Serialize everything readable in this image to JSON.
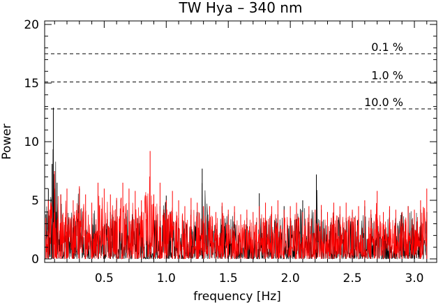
{
  "chart_data": {
    "type": "line",
    "title": "TW Hya – 340 nm",
    "xlabel": "frequency [Hz]",
    "ylabel": "Power",
    "xlim": [
      0.02,
      3.18
    ],
    "ylim": [
      -0.3,
      20.3
    ],
    "x_ticks": [
      0.5,
      1.0,
      1.5,
      2.0,
      2.5,
      3.0
    ],
    "x_tick_labels": [
      "0.5",
      "1.0",
      "1.5",
      "2.0",
      "2.5",
      "3.0"
    ],
    "y_ticks": [
      0,
      5,
      10,
      15,
      20
    ],
    "y_tick_labels": [
      "0",
      "5",
      "10",
      "15",
      "20"
    ],
    "grid": false,
    "significance_levels": [
      {
        "label": "0.1 %",
        "value": 17.5
      },
      {
        "label": "1.0 %",
        "value": 15.1
      },
      {
        "label": "10.0 %",
        "value": 12.8
      }
    ],
    "series": [
      {
        "color": "#000000",
        "x": [
          0.03,
          0.05,
          0.08,
          0.09,
          0.12,
          0.15,
          0.2,
          0.25,
          0.3,
          0.35,
          0.4,
          0.45,
          0.5,
          0.55,
          0.6,
          0.65,
          0.7,
          0.75,
          0.8,
          0.85,
          0.9,
          0.95,
          1.0,
          1.05,
          1.1,
          1.15,
          1.2,
          1.25,
          1.29,
          1.35,
          1.4,
          1.45,
          1.5,
          1.55,
          1.6,
          1.65,
          1.7,
          1.75,
          1.8,
          1.85,
          1.9,
          1.95,
          2.0,
          2.05,
          2.1,
          2.15,
          2.21,
          2.25,
          2.3,
          2.35,
          2.4,
          2.45,
          2.5,
          2.55,
          2.6,
          2.65,
          2.7,
          2.75,
          2.8,
          2.85,
          2.9,
          2.95,
          3.0,
          3.05,
          3.1
        ],
        "y": [
          3.8,
          6.0,
          8.1,
          12.9,
          6.5,
          5.5,
          4.5,
          3.8,
          6.0,
          4.0,
          3.5,
          5.5,
          3.0,
          4.0,
          5.0,
          3.5,
          4.8,
          3.2,
          4.0,
          3.0,
          3.8,
          4.5,
          5.4,
          4.0,
          3.0,
          3.5,
          4.2,
          4.0,
          7.7,
          3.2,
          3.0,
          4.5,
          3.8,
          4.0,
          3.2,
          3.5,
          2.8,
          5.6,
          3.5,
          4.0,
          3.8,
          4.5,
          3.5,
          4.0,
          5.0,
          3.8,
          7.2,
          4.2,
          3.5,
          4.0,
          3.8,
          3.5,
          4.0,
          3.6,
          4.5,
          3.8,
          3.5,
          3.0,
          4.2,
          3.5,
          4.0,
          4.5,
          3.8,
          4.2,
          4.0
        ]
      },
      {
        "color": "#ff0000",
        "x": [
          0.03,
          0.05,
          0.1,
          0.15,
          0.2,
          0.25,
          0.3,
          0.35,
          0.4,
          0.45,
          0.5,
          0.55,
          0.6,
          0.65,
          0.7,
          0.75,
          0.8,
          0.87,
          0.9,
          0.95,
          1.0,
          1.05,
          1.1,
          1.15,
          1.2,
          1.25,
          1.3,
          1.35,
          1.4,
          1.45,
          1.5,
          1.55,
          1.6,
          1.65,
          1.7,
          1.75,
          1.8,
          1.85,
          1.9,
          1.95,
          2.0,
          2.05,
          2.1,
          2.15,
          2.2,
          2.25,
          2.3,
          2.35,
          2.4,
          2.45,
          2.5,
          2.55,
          2.6,
          2.65,
          2.7,
          2.75,
          2.8,
          2.85,
          2.9,
          2.95,
          3.0,
          3.05,
          3.1
        ],
        "y": [
          3.5,
          5.0,
          7.5,
          5.5,
          6.0,
          5.0,
          6.2,
          5.5,
          4.8,
          6.5,
          6.0,
          5.5,
          5.2,
          6.5,
          6.0,
          5.8,
          5.0,
          9.2,
          5.5,
          6.5,
          5.0,
          5.8,
          5.0,
          4.5,
          5.2,
          4.8,
          4.5,
          4.5,
          4.0,
          4.8,
          4.2,
          4.5,
          3.8,
          4.2,
          4.0,
          4.5,
          4.8,
          4.5,
          5.0,
          4.2,
          4.5,
          4.8,
          4.0,
          4.5,
          4.2,
          4.6,
          4.0,
          4.8,
          4.5,
          4.8,
          4.2,
          4.5,
          5.0,
          4.2,
          5.8,
          4.0,
          4.5,
          4.2,
          4.0,
          4.5,
          4.2,
          5.0,
          6.0
        ]
      }
    ]
  }
}
